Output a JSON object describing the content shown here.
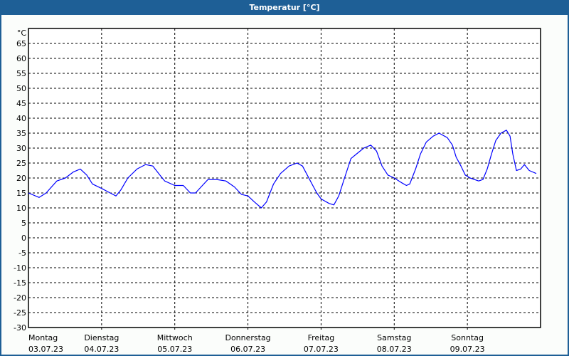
{
  "window": {
    "title": "Temperatur [°C]"
  },
  "chart_data": {
    "type": "line",
    "title": "Temperatur [°C]",
    "ylabel": "°C",
    "ylim": [
      -30,
      70
    ],
    "yticks": [
      65,
      60,
      55,
      50,
      45,
      40,
      35,
      30,
      25,
      20,
      15,
      10,
      5,
      0,
      -5,
      -10,
      -15,
      -20,
      -25,
      -30
    ],
    "xlim_hours": [
      0,
      168
    ],
    "xlabels": [
      {
        "day": "Montag",
        "date": "03.07.23"
      },
      {
        "day": "Dienstag",
        "date": "04.07.23"
      },
      {
        "day": "Mittwoch",
        "date": "05.07.23"
      },
      {
        "day": "Donnerstag",
        "date": "06.07.23"
      },
      {
        "day": "Freitag",
        "date": "07.07.23"
      },
      {
        "day": "Samstag",
        "date": "08.07.23"
      },
      {
        "day": "Sonntag",
        "date": "09.07.23"
      }
    ],
    "grid": true,
    "series": [
      {
        "name": "Temperatur",
        "color": "#0000ff",
        "x_hours": [
          0,
          3.5,
          5.8,
          9.3,
          12.1,
          14.7,
          17,
          19.1,
          21,
          24,
          26.8,
          28.7,
          30.3,
          32.6,
          35.6,
          38.4,
          40.8,
          43.1,
          44.7,
          48,
          50.8,
          53.1,
          54.8,
          56.6,
          58.9,
          61.7,
          64.8,
          67.6,
          69.9,
          72,
          74.1,
          76.4,
          78.1,
          80.4,
          82.7,
          85.5,
          88.1,
          89.9,
          92.5,
          94.6,
          96,
          98.6,
          100.2,
          101.8,
          103.7,
          105.8,
          107.6,
          110,
          112.3,
          114.2,
          116,
          117.9,
          120,
          122.3,
          124,
          125.1,
          127,
          128.6,
          130.5,
          132.8,
          134.7,
          137.4,
          139.1,
          140.3,
          141.9,
          143.3,
          144.9,
          147.7,
          149.1,
          150.5,
          151.9,
          153.3,
          155,
          156.8,
          158,
          158.9,
          160.1,
          161.5,
          162.7,
          164.3,
          166.6
        ],
        "values": [
          15,
          13.5,
          15,
          19,
          20,
          22,
          23,
          21,
          18,
          16.5,
          15,
          14,
          16,
          20,
          23,
          24.5,
          24,
          21,
          19,
          17.5,
          17.5,
          15,
          15,
          17,
          19.5,
          19.5,
          19,
          17,
          14.5,
          14,
          12,
          10,
          12,
          18,
          21.5,
          24,
          25,
          24,
          19,
          15,
          13,
          11.5,
          11,
          14,
          20,
          26.5,
          28,
          30,
          31,
          29,
          24,
          21,
          20,
          18.5,
          17.5,
          18,
          23,
          28,
          32,
          34,
          35,
          33.5,
          31,
          27,
          24,
          21,
          20,
          19,
          19.5,
          23,
          28,
          32.5,
          35,
          36,
          34,
          28,
          22.5,
          23,
          24.5,
          22.5,
          21.5
        ]
      }
    ]
  }
}
